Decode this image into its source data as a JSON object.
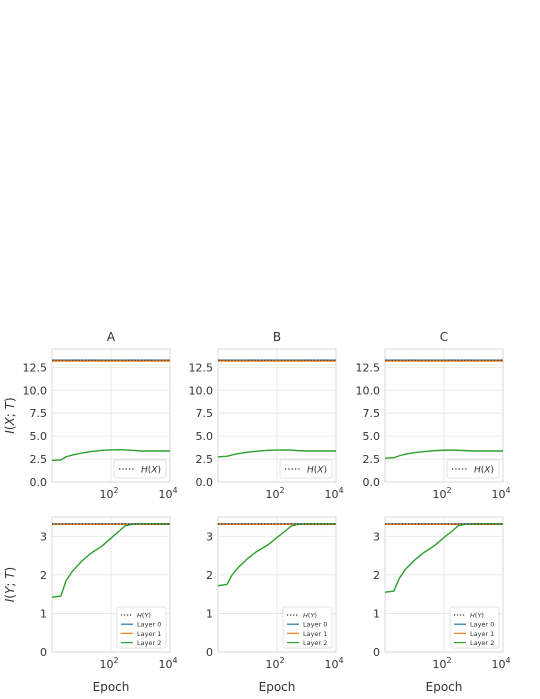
{
  "panel_titles": [
    "A",
    "B",
    "C"
  ],
  "row_ylabels": [
    "I(X; T)",
    "I(Y; T)"
  ],
  "xlabel": "Epoch",
  "colors": {
    "layer0": "#1f77b4",
    "layer1": "#ff7f0e",
    "layer2": "#2ca02c",
    "reference": "#333333",
    "grid": "#e3e3e3",
    "frame": "#d0d0d0"
  },
  "chart_data": [
    {
      "type": "line",
      "title": "A",
      "xscale": "log",
      "xlim": [
        1,
        10000
      ],
      "ylim": [
        0,
        14.5
      ],
      "yticks": [
        0.0,
        2.5,
        5.0,
        7.5,
        10.0,
        12.5
      ],
      "xticks": [
        100,
        10000
      ],
      "ylabel": "I(X; T)",
      "xlabel": "",
      "grid": true,
      "legend_position": "lower-right",
      "reference": {
        "name": "H(X)",
        "value": 13.29
      },
      "series": [
        {
          "name": "",
          "color": "#1f77b4",
          "x": [
            1,
            10000
          ],
          "y": [
            13.28,
            13.28
          ]
        },
        {
          "name": "",
          "color": "#ff7f0e",
          "x": [
            1,
            10000
          ],
          "y": [
            13.18,
            13.18
          ]
        },
        {
          "name": "",
          "color": "#2ca02c",
          "x": [
            1,
            2,
            3,
            5,
            10,
            20,
            50,
            100,
            200,
            300,
            500,
            1000,
            2000,
            5000,
            10000
          ],
          "y": [
            2.35,
            2.4,
            2.75,
            2.95,
            3.15,
            3.3,
            3.45,
            3.5,
            3.52,
            3.5,
            3.45,
            3.38,
            3.38,
            3.38,
            3.38
          ]
        }
      ]
    },
    {
      "type": "line",
      "title": "B",
      "xscale": "log",
      "xlim": [
        1,
        10000
      ],
      "ylim": [
        0,
        14.5
      ],
      "yticks": [
        0.0,
        2.5,
        5.0,
        7.5,
        10.0,
        12.5
      ],
      "xticks": [
        100,
        10000
      ],
      "ylabel": "",
      "xlabel": "",
      "grid": true,
      "legend_position": "lower-right",
      "reference": {
        "name": "H(X)",
        "value": 13.29
      },
      "series": [
        {
          "name": "",
          "color": "#1f77b4",
          "x": [
            1,
            10000
          ],
          "y": [
            13.28,
            13.28
          ]
        },
        {
          "name": "",
          "color": "#ff7f0e",
          "x": [
            1,
            10000
          ],
          "y": [
            13.18,
            13.18
          ]
        },
        {
          "name": "",
          "color": "#2ca02c",
          "x": [
            1,
            2,
            3,
            5,
            10,
            20,
            50,
            100,
            200,
            300,
            500,
            1000,
            2000,
            5000,
            10000
          ],
          "y": [
            2.75,
            2.8,
            2.95,
            3.1,
            3.25,
            3.35,
            3.45,
            3.48,
            3.5,
            3.48,
            3.42,
            3.38,
            3.38,
            3.38,
            3.38
          ]
        }
      ]
    },
    {
      "type": "line",
      "title": "C",
      "xscale": "log",
      "xlim": [
        1,
        10000
      ],
      "ylim": [
        0,
        14.5
      ],
      "yticks": [
        0.0,
        2.5,
        5.0,
        7.5,
        10.0,
        12.5
      ],
      "xticks": [
        100,
        10000
      ],
      "ylabel": "",
      "xlabel": "",
      "grid": true,
      "legend_position": "lower-right",
      "reference": {
        "name": "H(X)",
        "value": 13.29
      },
      "series": [
        {
          "name": "",
          "color": "#1f77b4",
          "x": [
            1,
            10000
          ],
          "y": [
            13.28,
            13.28
          ]
        },
        {
          "name": "",
          "color": "#ff7f0e",
          "x": [
            1,
            10000
          ],
          "y": [
            13.18,
            13.18
          ]
        },
        {
          "name": "",
          "color": "#2ca02c",
          "x": [
            1,
            2,
            3,
            5,
            10,
            20,
            50,
            100,
            200,
            300,
            500,
            1000,
            2000,
            5000,
            10000
          ],
          "y": [
            2.6,
            2.65,
            2.85,
            3.05,
            3.2,
            3.3,
            3.42,
            3.46,
            3.48,
            3.46,
            3.42,
            3.38,
            3.38,
            3.38,
            3.38
          ]
        }
      ]
    },
    {
      "type": "line",
      "title": "",
      "xscale": "log",
      "xlim": [
        1,
        10000
      ],
      "ylim": [
        0,
        3.5
      ],
      "yticks": [
        0,
        1,
        2,
        3
      ],
      "xticks": [
        100,
        10000
      ],
      "ylabel": "I(Y; T)",
      "xlabel": "Epoch",
      "grid": true,
      "legend_position": "lower-right",
      "reference": {
        "name": "H(Y)",
        "value": 3.32
      },
      "series": [
        {
          "name": "Layer 0",
          "color": "#1f77b4",
          "x": [
            1,
            10000
          ],
          "y": [
            3.32,
            3.32
          ]
        },
        {
          "name": "Layer 1",
          "color": "#ff7f0e",
          "x": [
            1,
            10000
          ],
          "y": [
            3.31,
            3.31
          ]
        },
        {
          "name": "Layer 2",
          "color": "#2ca02c",
          "x": [
            1,
            2,
            3,
            5,
            10,
            20,
            50,
            100,
            200,
            300,
            500,
            1000,
            2000,
            5000,
            10000
          ],
          "y": [
            1.42,
            1.45,
            1.85,
            2.1,
            2.35,
            2.55,
            2.75,
            2.95,
            3.15,
            3.27,
            3.31,
            3.32,
            3.32,
            3.32,
            3.32
          ]
        }
      ]
    },
    {
      "type": "line",
      "title": "",
      "xscale": "log",
      "xlim": [
        1,
        10000
      ],
      "ylim": [
        0,
        3.5
      ],
      "yticks": [
        0,
        1,
        2,
        3
      ],
      "xticks": [
        100,
        10000
      ],
      "ylabel": "",
      "xlabel": "Epoch",
      "grid": true,
      "legend_position": "lower-right",
      "reference": {
        "name": "H(Y)",
        "value": 3.32
      },
      "series": [
        {
          "name": "Layer 0",
          "color": "#1f77b4",
          "x": [
            1,
            10000
          ],
          "y": [
            3.32,
            3.32
          ]
        },
        {
          "name": "Layer 1",
          "color": "#ff7f0e",
          "x": [
            1,
            10000
          ],
          "y": [
            3.31,
            3.31
          ]
        },
        {
          "name": "Layer 2",
          "color": "#2ca02c",
          "x": [
            1,
            2,
            3,
            5,
            10,
            20,
            50,
            100,
            200,
            300,
            500,
            1000,
            2000,
            5000,
            10000
          ],
          "y": [
            1.72,
            1.75,
            2.0,
            2.2,
            2.42,
            2.6,
            2.78,
            2.97,
            3.15,
            3.26,
            3.31,
            3.32,
            3.32,
            3.32,
            3.32
          ]
        }
      ]
    },
    {
      "type": "line",
      "title": "",
      "xscale": "log",
      "xlim": [
        1,
        10000
      ],
      "ylim": [
        0,
        3.5
      ],
      "yticks": [
        0,
        1,
        2,
        3
      ],
      "xticks": [
        100,
        10000
      ],
      "ylabel": "",
      "xlabel": "Epoch",
      "grid": true,
      "legend_position": "lower-right",
      "reference": {
        "name": "H(Y)",
        "value": 3.32
      },
      "series": [
        {
          "name": "Layer 0",
          "color": "#1f77b4",
          "x": [
            1,
            10000
          ],
          "y": [
            3.32,
            3.32
          ]
        },
        {
          "name": "Layer 1",
          "color": "#ff7f0e",
          "x": [
            1,
            10000
          ],
          "y": [
            3.31,
            3.31
          ]
        },
        {
          "name": "Layer 2",
          "color": "#2ca02c",
          "x": [
            1,
            2,
            3,
            5,
            10,
            20,
            50,
            100,
            200,
            300,
            500,
            1000,
            2000,
            5000,
            10000
          ],
          "y": [
            1.55,
            1.58,
            1.9,
            2.15,
            2.38,
            2.57,
            2.77,
            2.97,
            3.15,
            3.27,
            3.31,
            3.32,
            3.32,
            3.32,
            3.32
          ]
        }
      ]
    }
  ]
}
